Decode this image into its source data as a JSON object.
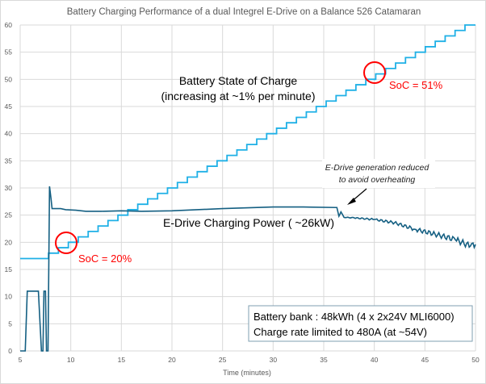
{
  "chart_data": {
    "type": "line",
    "title": "Battery Charging Performance of a dual Integrel E-Drive on a Balance 526 Catamaran",
    "xlabel": "Time (minutes)",
    "ylabel": "",
    "xlim": [
      5,
      50
    ],
    "ylim": [
      0,
      60
    ],
    "xticks": [
      5,
      10,
      15,
      20,
      25,
      30,
      35,
      40,
      45,
      50
    ],
    "yticks": [
      0,
      5,
      10,
      15,
      20,
      25,
      30,
      35,
      40,
      45,
      50,
      55,
      60
    ],
    "grid": true,
    "series": [
      {
        "name": "Battery State of Charge",
        "color": "#1fb0e6",
        "step": true,
        "points": [
          [
            5,
            17
          ],
          [
            7.8,
            18
          ],
          [
            8.78,
            19
          ],
          [
            9.76,
            20
          ],
          [
            10.74,
            21
          ],
          [
            11.72,
            22
          ],
          [
            12.7,
            23
          ],
          [
            13.68,
            24
          ],
          [
            14.66,
            25
          ],
          [
            15.64,
            26
          ],
          [
            16.62,
            27
          ],
          [
            17.6,
            28
          ],
          [
            18.58,
            29
          ],
          [
            19.56,
            30
          ],
          [
            20.54,
            31
          ],
          [
            21.52,
            32
          ],
          [
            22.5,
            33
          ],
          [
            23.48,
            34
          ],
          [
            24.46,
            35
          ],
          [
            25.44,
            36
          ],
          [
            26.42,
            37
          ],
          [
            27.4,
            38
          ],
          [
            28.38,
            39
          ],
          [
            29.36,
            40
          ],
          [
            30.34,
            41
          ],
          [
            31.32,
            42
          ],
          [
            32.3,
            43
          ],
          [
            33.28,
            44
          ],
          [
            34.26,
            45
          ],
          [
            35.24,
            46
          ],
          [
            36.22,
            47
          ],
          [
            37.2,
            48
          ],
          [
            38.18,
            49
          ],
          [
            39.16,
            50
          ],
          [
            40.14,
            51
          ],
          [
            41.12,
            52
          ],
          [
            42.1,
            53
          ],
          [
            43.08,
            54
          ],
          [
            44.06,
            55
          ],
          [
            45.04,
            56
          ],
          [
            46.02,
            57
          ],
          [
            47,
            58
          ],
          [
            47.98,
            59
          ],
          [
            48.96,
            60
          ],
          [
            50,
            60
          ]
        ]
      },
      {
        "name": "E-Drive Charging Power ( ~26kW)",
        "color": "#145f82",
        "step": false,
        "points": [
          [
            5,
            0
          ],
          [
            5.5,
            0
          ],
          [
            5.7,
            11
          ],
          [
            6.8,
            11
          ],
          [
            7.1,
            0
          ],
          [
            7.25,
            0
          ],
          [
            7.35,
            11
          ],
          [
            7.5,
            11
          ],
          [
            7.6,
            0
          ],
          [
            7.75,
            0
          ],
          [
            7.9,
            30.3
          ],
          [
            8.05,
            28
          ],
          [
            8.15,
            26.2
          ],
          [
            9,
            26.2
          ],
          [
            9.5,
            26
          ],
          [
            10.5,
            25.9
          ],
          [
            11.5,
            25.7
          ],
          [
            13,
            25.7
          ],
          [
            15,
            25.8
          ],
          [
            17,
            25.7
          ],
          [
            20,
            25.8
          ],
          [
            25,
            26.2
          ],
          [
            30,
            26.5
          ],
          [
            33,
            26.5
          ],
          [
            36.3,
            26.4
          ],
          [
            36.5,
            24.8
          ],
          [
            36.7,
            25.6
          ],
          [
            37,
            24.6
          ],
          [
            38,
            24.5
          ],
          [
            40,
            24.2
          ],
          [
            42,
            23.6
          ],
          [
            44,
            22.4
          ],
          [
            46,
            21.5
          ],
          [
            48,
            20.5
          ],
          [
            49.5,
            19.3
          ],
          [
            50,
            19.6
          ]
        ]
      }
    ],
    "annotations": {
      "soc_label": "Battery State of Charge",
      "soc_sub": "(increasing at ~1% per minute)",
      "power_label": "E-Drive Charging Power ( ~26kW)",
      "soc20": "SoC = 20%",
      "soc51": "SoC = 51%",
      "overheat1": "E-Drive generation reduced",
      "overheat2": "to avoid overheating",
      "box1": "Battery bank : 48kWh (4 x 2x24V MLI6000)",
      "box2": "Charge rate limited to 480A (at ~54V)"
    },
    "colors": {
      "highlight": "#ff0000",
      "grid": "#d9d9d9"
    }
  }
}
